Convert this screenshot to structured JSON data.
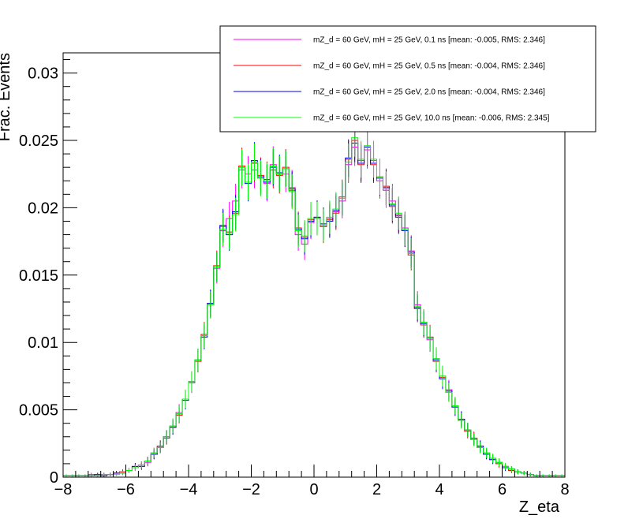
{
  "chart_data": {
    "type": "line",
    "title": "",
    "xlabel": "Z_eta",
    "ylabel": "Frac. Events",
    "xlim": [
      -8,
      8
    ],
    "ylim": [
      0,
      0.0315
    ],
    "x_ticks": [
      -8,
      -6,
      -4,
      -2,
      0,
      2,
      4,
      6,
      8
    ],
    "x_tick_labels": [
      "−8",
      "−6",
      "−4",
      "−2",
      "0",
      "2",
      "4",
      "6",
      "8"
    ],
    "y_ticks": [
      0,
      0.005,
      0.01,
      0.015,
      0.02,
      0.025,
      0.03
    ],
    "y_tick_labels": [
      "0",
      "0.005",
      "0.01",
      "0.015",
      "0.02",
      "0.025",
      "0.03"
    ],
    "histogram_style": "step",
    "bin_width": 0.2,
    "grid": false,
    "legend_position": "top-right",
    "x": [
      -7.9,
      -7.7,
      -7.5,
      -7.3,
      -7.1,
      -6.9,
      -6.7,
      -6.5,
      -6.3,
      -6.1,
      -5.9,
      -5.7,
      -5.5,
      -5.3,
      -5.1,
      -4.9,
      -4.7,
      -4.5,
      -4.3,
      -4.1,
      -3.9,
      -3.7,
      -3.5,
      -3.3,
      -3.1,
      -2.9,
      -2.7,
      -2.5,
      -2.3,
      -2.1,
      -1.9,
      -1.7,
      -1.5,
      -1.3,
      -1.1,
      -0.9,
      -0.7,
      -0.5,
      -0.3,
      -0.1,
      0.1,
      0.3,
      0.5,
      0.7,
      0.9,
      1.1,
      1.3,
      1.5,
      1.7,
      1.9,
      2.1,
      2.3,
      2.5,
      2.7,
      2.9,
      3.1,
      3.3,
      3.5,
      3.7,
      3.9,
      4.1,
      4.3,
      4.5,
      4.7,
      4.9,
      5.1,
      5.3,
      5.5,
      5.7,
      5.9,
      6.1,
      6.3,
      6.5,
      6.7,
      6.9,
      7.1,
      7.3,
      7.5,
      7.7,
      7.9
    ],
    "series": [
      {
        "name": "mZ_d = 60 GeV, mH = 25 GeV, 0.1 ns [mean: -0.005, RMS: 2.346]",
        "color": "#ff00ff",
        "values": [
          0.0001,
          0.0001,
          0.0001,
          0.0001,
          0.0002,
          0.0001,
          0.0002,
          0.0002,
          0.0003,
          0.0003,
          0.0005,
          0.0008,
          0.0009,
          0.0011,
          0.0018,
          0.0023,
          0.003,
          0.0038,
          0.0048,
          0.0058,
          0.007,
          0.0087,
          0.0105,
          0.0128,
          0.0155,
          0.0183,
          0.0192,
          0.0205,
          0.0228,
          0.0225,
          0.0228,
          0.0222,
          0.0218,
          0.0232,
          0.0225,
          0.0225,
          0.0215,
          0.018,
          0.0173,
          0.0189,
          0.0193,
          0.0187,
          0.0192,
          0.0197,
          0.0205,
          0.0232,
          0.0245,
          0.0235,
          0.0243,
          0.0235,
          0.022,
          0.0213,
          0.0205,
          0.0195,
          0.0185,
          0.0168,
          0.0128,
          0.0115,
          0.0102,
          0.0088,
          0.0075,
          0.0065,
          0.0052,
          0.0042,
          0.0035,
          0.0028,
          0.0023,
          0.0018,
          0.0013,
          0.001,
          0.0008,
          0.0006,
          0.0004,
          0.0003,
          0.0002,
          0.0001,
          0.0001,
          0.0001,
          0.0001,
          0.0001
        ]
      },
      {
        "name": "mZ_d = 60 GeV, mH = 25 GeV, 0.5 ns [mean: -0.004, RMS: 2.346]",
        "color": "#ff0000",
        "values": [
          0.0001,
          0.0001,
          0.0001,
          0.0001,
          0.0001,
          0.0001,
          0.0002,
          0.0002,
          0.0003,
          0.0004,
          0.0005,
          0.0007,
          0.0009,
          0.0012,
          0.0017,
          0.0023,
          0.0029,
          0.0037,
          0.0046,
          0.0058,
          0.0071,
          0.0086,
          0.0106,
          0.0129,
          0.0157,
          0.0186,
          0.0182,
          0.0196,
          0.0231,
          0.0219,
          0.0233,
          0.0224,
          0.0221,
          0.0228,
          0.0224,
          0.023,
          0.0213,
          0.0185,
          0.0178,
          0.0191,
          0.0192,
          0.0186,
          0.0191,
          0.0196,
          0.0208,
          0.0236,
          0.025,
          0.0232,
          0.0246,
          0.0232,
          0.0223,
          0.0216,
          0.0201,
          0.0194,
          0.0183,
          0.0165,
          0.0125,
          0.0113,
          0.0104,
          0.0086,
          0.0074,
          0.0063,
          0.0053,
          0.0043,
          0.0034,
          0.0029,
          0.0022,
          0.0017,
          0.0014,
          0.001,
          0.0008,
          0.0005,
          0.0004,
          0.0003,
          0.0002,
          0.0001,
          0.0001,
          0.0001,
          0.0001,
          0.0001
        ]
      },
      {
        "name": "mZ_d = 60 GeV, mH = 25 GeV, 2.0 ns [mean: -0.004, RMS: 2.346]",
        "color": "#0000ff",
        "values": [
          0.0001,
          0.0001,
          0.0001,
          0.0001,
          0.0001,
          0.0002,
          0.0001,
          0.0002,
          0.0003,
          0.0003,
          0.0005,
          0.0008,
          0.0008,
          0.0012,
          0.0017,
          0.0022,
          0.003,
          0.0037,
          0.0047,
          0.0057,
          0.0071,
          0.0087,
          0.0104,
          0.0129,
          0.0156,
          0.0187,
          0.018,
          0.0197,
          0.023,
          0.0218,
          0.0235,
          0.0223,
          0.0219,
          0.023,
          0.0226,
          0.0229,
          0.0214,
          0.0184,
          0.0177,
          0.019,
          0.0193,
          0.0188,
          0.019,
          0.0198,
          0.0207,
          0.0237,
          0.0248,
          0.0233,
          0.0245,
          0.0233,
          0.0222,
          0.0215,
          0.0202,
          0.0193,
          0.0183,
          0.0167,
          0.0126,
          0.0114,
          0.0103,
          0.0087,
          0.0073,
          0.0064,
          0.0052,
          0.0043,
          0.0035,
          0.0028,
          0.0023,
          0.0017,
          0.0013,
          0.0011,
          0.0007,
          0.0006,
          0.0004,
          0.0003,
          0.0002,
          0.0001,
          0.0001,
          0.0001,
          0.0001,
          0.0001
        ]
      },
      {
        "name": "mZ_d = 60 GeV, mH = 25 GeV, 10.0 ns [mean: -0.006, RMS: 2.345]",
        "color": "#00ff00",
        "values": [
          0.0001,
          0.0001,
          0.0001,
          0.0001,
          0.0001,
          0.0001,
          0.0002,
          0.0002,
          0.0002,
          0.0003,
          0.0005,
          0.0007,
          0.0009,
          0.0012,
          0.0018,
          0.0022,
          0.003,
          0.0038,
          0.0047,
          0.0058,
          0.0071,
          0.0087,
          0.0105,
          0.0128,
          0.0156,
          0.0184,
          0.0181,
          0.0195,
          0.023,
          0.0219,
          0.0234,
          0.0222,
          0.022,
          0.0231,
          0.0225,
          0.0229,
          0.0212,
          0.0183,
          0.0179,
          0.0192,
          0.0192,
          0.0187,
          0.0193,
          0.0199,
          0.0207,
          0.0234,
          0.0252,
          0.0236,
          0.0246,
          0.0236,
          0.0223,
          0.0214,
          0.0203,
          0.0196,
          0.0184,
          0.0166,
          0.0127,
          0.0115,
          0.0103,
          0.0088,
          0.0075,
          0.0063,
          0.0053,
          0.0042,
          0.0035,
          0.0028,
          0.0022,
          0.0018,
          0.0014,
          0.0011,
          0.0008,
          0.0006,
          0.0004,
          0.0003,
          0.0002,
          0.0001,
          0.0001,
          0.0001,
          0.0001,
          0.0001
        ]
      }
    ]
  }
}
